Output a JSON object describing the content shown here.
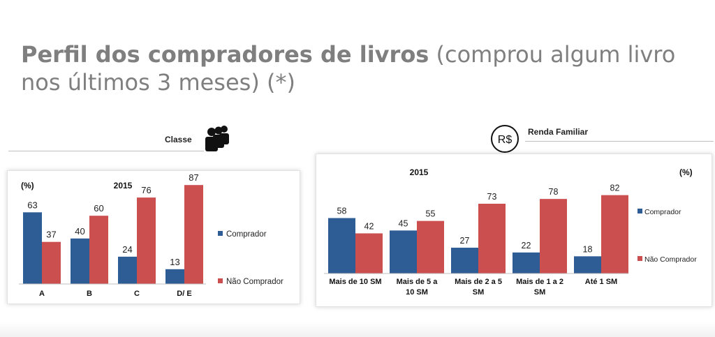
{
  "page": {
    "title_bold": "Perfil dos compradores de livros",
    "title_rest": " (comprou algum livro nos últimos 3 meses) (*)"
  },
  "section_classe": {
    "label": "Classe",
    "icon": "people-group-icon"
  },
  "section_renda": {
    "label": "Renda Familiar",
    "icon": "real-currency-icon",
    "icon_text": "R$"
  },
  "colors": {
    "comprador": "#2e5d95",
    "nao_comprador": "#cc4f4f"
  },
  "chart_data": [
    {
      "type": "bar",
      "year_label": "2015",
      "unit_label": "(%)",
      "categories": [
        "A",
        "B",
        "C",
        "D/ E"
      ],
      "series": [
        {
          "name": "Comprador",
          "values": [
            63,
            40,
            24,
            13
          ]
        },
        {
          "name": "Não Comprador",
          "values": [
            37,
            60,
            76,
            87
          ]
        }
      ],
      "ylim": [
        0,
        100
      ],
      "grid": false,
      "legend": "right"
    },
    {
      "type": "bar",
      "year_label": "2015",
      "unit_label": "(%)",
      "categories": [
        "Mais de 10 SM",
        "Mais de 5 a 10 SM",
        "Mais de 2 a 5 SM",
        "Mais de 1 a 2 SM",
        "Até 1 SM"
      ],
      "series": [
        {
          "name": "Comprador",
          "values": [
            58,
            45,
            27,
            22,
            18
          ]
        },
        {
          "name": "Não Comprador",
          "values": [
            42,
            55,
            73,
            78,
            82
          ]
        }
      ],
      "ylim": [
        0,
        100
      ],
      "grid": false,
      "legend": "right"
    }
  ]
}
